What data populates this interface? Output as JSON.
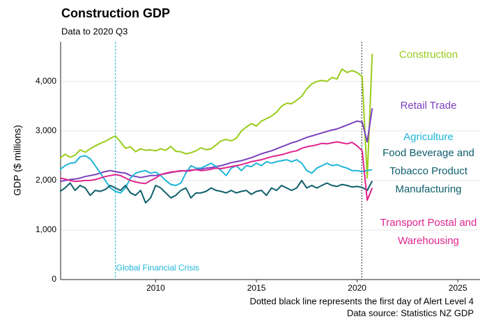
{
  "chart_data": {
    "type": "line",
    "title": "Construction GDP",
    "subtitle": "Data to 2020 Q3",
    "y_label": "GDP ($ millions)",
    "notes": [
      "Dotted black line represents the first day of Alert Level 4",
      "Data source: Statistics NZ GDP"
    ],
    "xlim": [
      2005.28,
      2026.1
    ],
    "xticks": [
      2010,
      2015,
      2020,
      2025
    ],
    "ylim": [
      0,
      4800
    ],
    "yticks": [
      0,
      {
        "value": 1000,
        "label": "1,000"
      },
      {
        "value": 2000,
        "label": "2,000"
      },
      {
        "value": 3000,
        "label": "3,000"
      },
      {
        "value": 4000,
        "label": "4,000"
      }
    ],
    "grid": true,
    "annotations": [
      {
        "x": 2008,
        "text": "Global Financial Crisis",
        "color": "#1fb5d8"
      },
      {
        "x": 2020.23,
        "color": "#222222"
      }
    ],
    "x": [
      2005.25,
      2005.5,
      2005.75,
      2006,
      2006.25,
      2006.5,
      2006.75,
      2007,
      2007.25,
      2007.5,
      2007.75,
      2008,
      2008.25,
      2008.5,
      2008.75,
      2009,
      2009.25,
      2009.5,
      2009.75,
      2010,
      2010.25,
      2010.5,
      2010.75,
      2011,
      2011.25,
      2011.5,
      2011.75,
      2012,
      2012.25,
      2012.5,
      2012.75,
      2013,
      2013.25,
      2013.5,
      2013.75,
      2014,
      2014.25,
      2014.5,
      2014.75,
      2015,
      2015.25,
      2015.5,
      2015.75,
      2016,
      2016.25,
      2016.5,
      2016.75,
      2017,
      2017.25,
      2017.5,
      2017.75,
      2018,
      2018.25,
      2018.5,
      2018.75,
      2019,
      2019.25,
      2019.5,
      2019.75,
      2020,
      2020.25,
      2020.5,
      2020.75
    ],
    "series": [
      {
        "name": "Construction",
        "color": "#99cc1a",
        "values": [
          2450,
          2530,
          2470,
          2510,
          2620,
          2570,
          2640,
          2700,
          2750,
          2790,
          2850,
          2900,
          2780,
          2650,
          2680,
          2580,
          2640,
          2610,
          2620,
          2600,
          2640,
          2610,
          2690,
          2590,
          2580,
          2540,
          2560,
          2600,
          2660,
          2620,
          2640,
          2720,
          2800,
          2830,
          2800,
          2850,
          3000,
          3080,
          3150,
          3100,
          3200,
          3250,
          3300,
          3380,
          3500,
          3560,
          3550,
          3620,
          3700,
          3850,
          3950,
          4000,
          4020,
          4000,
          4080,
          4050,
          4250,
          4180,
          4220,
          4180,
          4100,
          2050,
          4560
        ]
      },
      {
        "name": "Retail Trade",
        "color": "#7b3fbf",
        "values": [
          1980,
          2000,
          2020,
          2030,
          2050,
          2080,
          2100,
          2120,
          2150,
          2180,
          2200,
          2180,
          2160,
          2150,
          2100,
          2080,
          2060,
          2080,
          2100,
          2100,
          2120,
          2140,
          2160,
          2180,
          2190,
          2200,
          2210,
          2220,
          2230,
          2250,
          2260,
          2280,
          2300,
          2330,
          2360,
          2380,
          2400,
          2430,
          2460,
          2500,
          2540,
          2570,
          2600,
          2640,
          2680,
          2720,
          2760,
          2790,
          2830,
          2870,
          2900,
          2930,
          2960,
          2990,
          3020,
          3040,
          3080,
          3120,
          3160,
          3200,
          3180,
          2780,
          3460
        ]
      },
      {
        "name": "Agriculture",
        "color": "#1fb5d8",
        "values": [
          2220,
          2300,
          2350,
          2360,
          2480,
          2500,
          2440,
          2300,
          2150,
          2000,
          1850,
          1780,
          1750,
          1850,
          2050,
          2150,
          2180,
          2200,
          2150,
          2170,
          2100,
          2000,
          1920,
          1900,
          1950,
          2150,
          2300,
          2250,
          2250,
          2300,
          2350,
          2280,
          2200,
          2100,
          2250,
          2300,
          2200,
          2300,
          2280,
          2350,
          2300,
          2380,
          2350,
          2380,
          2400,
          2420,
          2380,
          2420,
          2350,
          2200,
          2150,
          2250,
          2300,
          2350,
          2300,
          2320,
          2280,
          2250,
          2200,
          2200,
          2180,
          2200,
          2220
        ]
      },
      {
        "name": "Food Beverage and Tobacco Product Manufacturing",
        "color": "#0e5e6b",
        "values": [
          1780,
          1850,
          1950,
          1800,
          1900,
          1850,
          1700,
          1800,
          1780,
          1820,
          1900,
          1850,
          1800,
          1900,
          1750,
          1700,
          1800,
          1550,
          1650,
          1900,
          1850,
          1750,
          1650,
          1700,
          1800,
          1850,
          1650,
          1750,
          1750,
          1780,
          1850,
          1800,
          1780,
          1750,
          1800,
          1750,
          1780,
          1800,
          1720,
          1780,
          1800,
          1700,
          1850,
          1800,
          1900,
          1850,
          1800,
          1850,
          2000,
          1850,
          1900,
          1850,
          1900,
          1950,
          1900,
          1880,
          1920,
          1900,
          1870,
          1880,
          1860,
          1800,
          1990
        ]
      },
      {
        "name": "Transport Postal and Warehousing",
        "color": "#e0248e",
        "values": [
          2050,
          2030,
          2000,
          1980,
          1990,
          2000,
          2000,
          2020,
          2050,
          2080,
          2100,
          2120,
          2100,
          2050,
          2000,
          1970,
          1950,
          1940,
          2000,
          2050,
          2120,
          2150,
          2170,
          2180,
          2200,
          2190,
          2200,
          2220,
          2200,
          2210,
          2230,
          2250,
          2240,
          2260,
          2280,
          2300,
          2320,
          2350,
          2380,
          2400,
          2420,
          2450,
          2480,
          2500,
          2520,
          2550,
          2580,
          2600,
          2650,
          2680,
          2700,
          2720,
          2750,
          2740,
          2760,
          2780,
          2760,
          2740,
          2770,
          2700,
          2600,
          1600,
          1850
        ]
      }
    ]
  }
}
